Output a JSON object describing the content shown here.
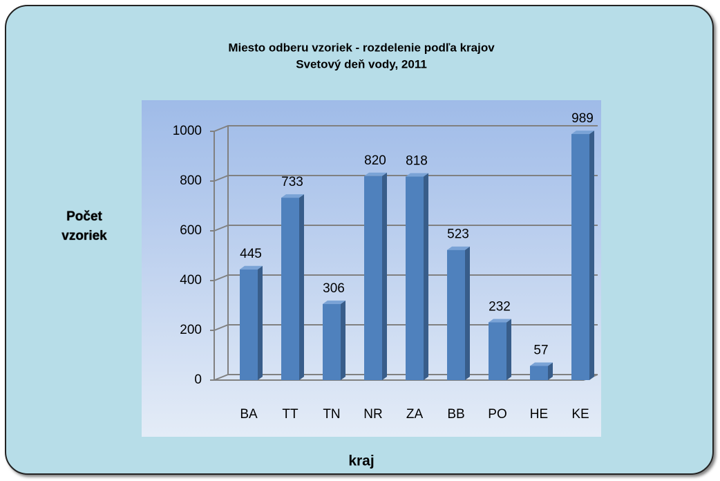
{
  "chart_data": {
    "type": "bar",
    "title": "Miesto odberu vzoriek - rozdelenie podľa krajov",
    "subtitle": "Svetový deň vody, 2011",
    "y_label": "Počet vzoriek",
    "x_label": "kraj",
    "categories": [
      "BA",
      "TT",
      "TN",
      "NR",
      "ZA",
      "BB",
      "PO",
      "HE",
      "KE"
    ],
    "values": [
      445,
      733,
      306,
      820,
      818,
      523,
      232,
      57,
      989
    ],
    "color": "#4f81bd",
    "ylim": [
      0,
      1000
    ],
    "yticks": [
      0,
      200,
      400,
      600,
      800,
      1000
    ],
    "grid": true
  }
}
